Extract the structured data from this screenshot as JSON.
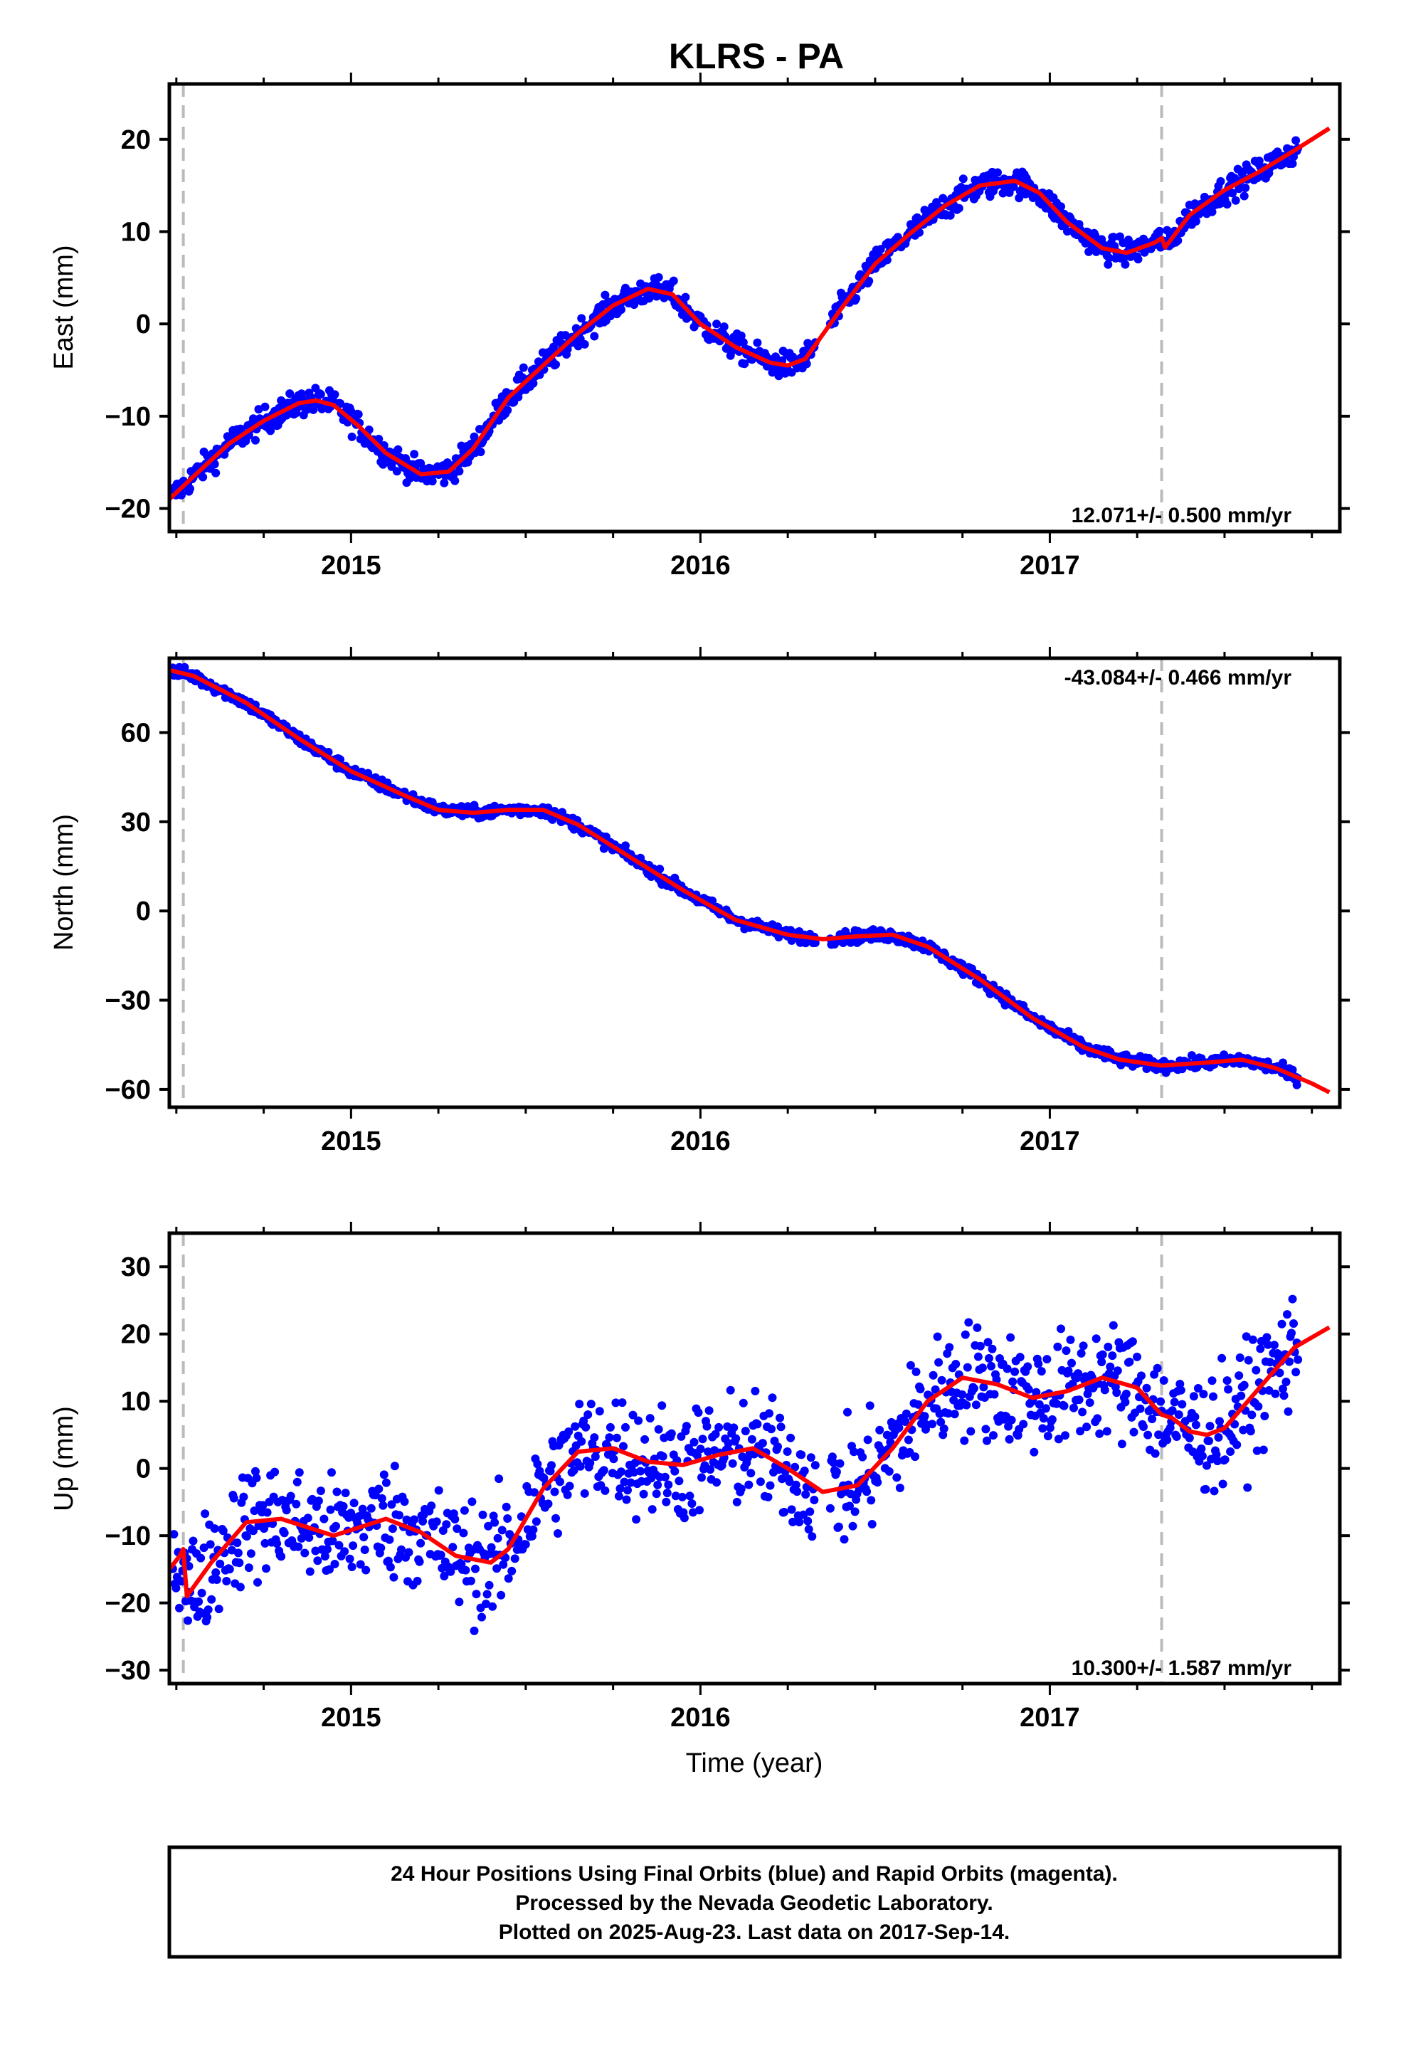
{
  "title": "KLRS - PA",
  "caption": {
    "lines": [
      "24 Hour Positions Using Final Orbits (blue) and Rapid Orbits (magenta).",
      "Processed by the Nevada Geodetic Laboratory.",
      "Plotted on 2025-Aug-23. Last data on 2017-Sep-14."
    ]
  },
  "colors": {
    "final_orbits": "#0000ff",
    "fit": "#ff0000",
    "marker_line": "#bbbbbb",
    "frame": "#000000"
  },
  "chart_data": [
    {
      "type": "scatter",
      "ylabel": "East (mm)",
      "xlabel": "",
      "rate_label": "12.071+/- 0.500 mm/yr",
      "rate_position": "bottom-right",
      "xlim": [
        2014.48,
        2017.83
      ],
      "ylim": [
        -22.5,
        26
      ],
      "x_ticks": [
        2015,
        2016,
        2017
      ],
      "x_ticklabels": [
        "2015",
        "2016",
        "2017"
      ],
      "y_ticks": [
        -20,
        -10,
        0,
        10,
        20
      ],
      "y_ticklabels": [
        "−20",
        "−10",
        "0",
        "10",
        "20"
      ],
      "vertical_markers": [
        2014.52,
        2017.32
      ],
      "scatter_noise": 1.0,
      "series": [
        {
          "role": "fit",
          "x": [
            2014.48,
            2014.55,
            2014.65,
            2014.75,
            2014.85,
            2014.9,
            2014.95,
            2015.02,
            2015.1,
            2015.2,
            2015.28,
            2015.35,
            2015.45,
            2015.55,
            2015.65,
            2015.75,
            2015.85,
            2015.92,
            2016.0,
            2016.1,
            2016.2,
            2016.25,
            2016.3,
            2016.4,
            2016.5,
            2016.6,
            2016.7,
            2016.8,
            2016.9,
            2016.97,
            2017.05,
            2017.15,
            2017.22,
            2017.3,
            2017.32,
            2017.33,
            2017.4,
            2017.5,
            2017.6,
            2017.7,
            2017.8
          ],
          "y": [
            -19,
            -16.5,
            -13,
            -10.5,
            -8.6,
            -8.3,
            -8.8,
            -11,
            -14,
            -16.3,
            -16,
            -13.5,
            -8,
            -4.5,
            -1,
            2,
            3.8,
            3.2,
            0,
            -2.5,
            -4.2,
            -4.5,
            -3.8,
            1.5,
            6.5,
            9.8,
            12.8,
            15,
            15.5,
            14.2,
            11,
            8.2,
            7.7,
            8.8,
            9.3,
            8.3,
            11.8,
            14.5,
            16.5,
            18.8,
            21.2
          ]
        }
      ]
    },
    {
      "type": "scatter",
      "ylabel": "North (mm)",
      "xlabel": "",
      "rate_label": "-43.084+/- 0.466 mm/yr",
      "rate_position": "top-right",
      "xlim": [
        2014.48,
        2017.83
      ],
      "ylim": [
        -66,
        85
      ],
      "x_ticks": [
        2015,
        2016,
        2017
      ],
      "x_ticklabels": [
        "2015",
        "2016",
        "2017"
      ],
      "y_ticks": [
        -60,
        -30,
        0,
        30,
        60
      ],
      "y_ticklabels": [
        "−60",
        "−30",
        "0",
        "30",
        "60"
      ],
      "vertical_markers": [
        2014.52,
        2017.32
      ],
      "scatter_noise": 1.4,
      "series": [
        {
          "role": "fit",
          "x": [
            2014.48,
            2014.55,
            2014.7,
            2014.85,
            2015.0,
            2015.15,
            2015.25,
            2015.35,
            2015.45,
            2015.55,
            2015.65,
            2015.8,
            2015.95,
            2016.1,
            2016.25,
            2016.35,
            2016.45,
            2016.55,
            2016.65,
            2016.8,
            2016.95,
            2017.1,
            2017.2,
            2017.32,
            2017.45,
            2017.55,
            2017.65,
            2017.75,
            2017.8
          ],
          "y": [
            81,
            79,
            70,
            58,
            47,
            39,
            34,
            33,
            34,
            34,
            29,
            18,
            7,
            -3,
            -8,
            -9.5,
            -8.5,
            -8,
            -12,
            -23,
            -36,
            -46,
            -50,
            -52,
            -51,
            -50,
            -53,
            -58,
            -61
          ]
        }
      ]
    },
    {
      "type": "scatter",
      "ylabel": "Up (mm)",
      "xlabel": "Time (year)",
      "rate_label": "10.300+/- 1.587 mm/yr",
      "rate_position": "bottom-right",
      "xlim": [
        2014.48,
        2017.83
      ],
      "ylim": [
        -32,
        35
      ],
      "x_ticks": [
        2015,
        2016,
        2017
      ],
      "x_ticklabels": [
        "2015",
        "2016",
        "2017"
      ],
      "y_ticks": [
        -30,
        -20,
        -10,
        0,
        10,
        20,
        30
      ],
      "y_ticklabels": [
        "−30",
        "−20",
        "−10",
        "0",
        "10",
        "20",
        "30"
      ],
      "vertical_markers": [
        2014.52,
        2017.32
      ],
      "scatter_noise": 6.0,
      "series": [
        {
          "role": "fit",
          "x": [
            2014.48,
            2014.51,
            2014.52,
            2014.53,
            2014.6,
            2014.7,
            2014.8,
            2014.95,
            2015.1,
            2015.2,
            2015.3,
            2015.4,
            2015.45,
            2015.55,
            2015.65,
            2015.75,
            2015.85,
            2015.95,
            2016.05,
            2016.15,
            2016.25,
            2016.35,
            2016.45,
            2016.55,
            2016.65,
            2016.75,
            2016.85,
            2016.95,
            2017.05,
            2017.15,
            2017.25,
            2017.32,
            2017.35,
            2017.4,
            2017.45,
            2017.5,
            2017.6,
            2017.7,
            2017.8
          ],
          "y": [
            -15,
            -13,
            -12,
            -19,
            -14,
            -8,
            -7.5,
            -10,
            -7.5,
            -9.5,
            -13,
            -14,
            -12,
            -3,
            2.5,
            3,
            1,
            0.5,
            2,
            3,
            0,
            -3.5,
            -2.5,
            3,
            10,
            13.5,
            12.5,
            10.5,
            11.5,
            13.5,
            12,
            8,
            7.5,
            5.5,
            5,
            6,
            12,
            18,
            21
          ]
        }
      ]
    }
  ]
}
